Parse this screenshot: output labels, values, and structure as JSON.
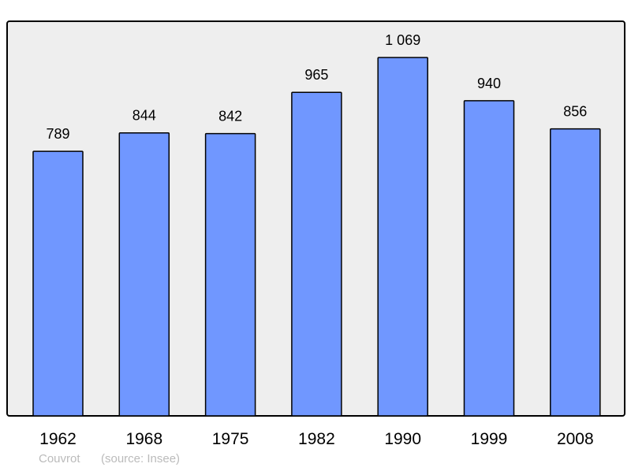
{
  "chart_data": {
    "type": "bar",
    "categories": [
      "1962",
      "1968",
      "1975",
      "1982",
      "1990",
      "1999",
      "2008"
    ],
    "values": [
      789,
      844,
      842,
      965,
      1069,
      940,
      856
    ],
    "data_labels": [
      "789",
      "844",
      "842",
      "965",
      "1 069",
      "940",
      "856"
    ],
    "title": "",
    "xlabel": "",
    "ylabel": "",
    "ylim": [
      0,
      1177
    ],
    "grid": false,
    "bar_color": "#7097ff",
    "plot_background": "#eeeeee"
  },
  "footer": {
    "place": "Couvrot",
    "source": "(source: Insee)"
  }
}
